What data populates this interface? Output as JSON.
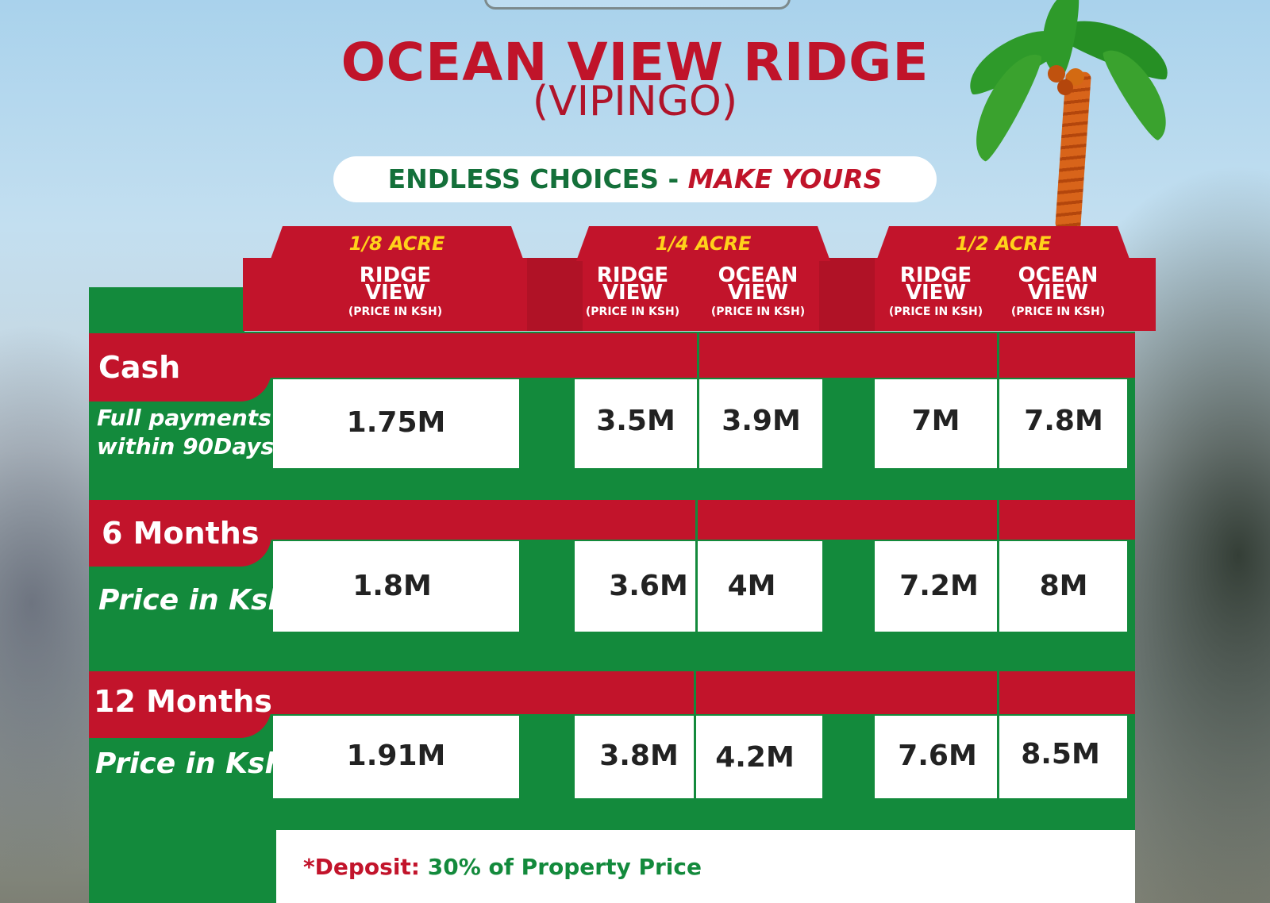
{
  "title": "OCEAN VIEW RIDGE",
  "subtitle": "(VIPINGO)",
  "tagline": {
    "part1": "ENDLESS CHOICES - ",
    "part2": "MAKE YOURS"
  },
  "groups": [
    "1/8 ACRE",
    "1/4 ACRE",
    "1/2 ACRE"
  ],
  "columns": [
    {
      "line1": "RIDGE",
      "line2": "VIEW",
      "note": "(PRICE IN KSH)"
    },
    {
      "line1": "RIDGE",
      "line2": "VIEW",
      "note": "(PRICE IN KSH)"
    },
    {
      "line1": "OCEAN",
      "line2": "VIEW",
      "note": "(PRICE IN KSH)"
    },
    {
      "line1": "RIDGE",
      "line2": "VIEW",
      "note": "(PRICE IN KSH)"
    },
    {
      "line1": "OCEAN",
      "line2": "VIEW",
      "note": "(PRICE IN KSH)"
    }
  ],
  "rows": [
    {
      "label": "Cash",
      "sub1": "Full payments",
      "sub2": "within 90Days",
      "values": [
        "1.75M",
        "3.5M",
        "3.9M",
        "7M",
        "7.8M"
      ]
    },
    {
      "label": "6 Months",
      "sub1": "Price in Ksh",
      "sub2": "",
      "values": [
        "1.8M",
        "3.6M",
        "4M",
        "7.2M",
        "8M"
      ]
    },
    {
      "label": "12 Months",
      "sub1": "Price in Ksh",
      "sub2": "",
      "values": [
        "1.91M",
        "3.8M",
        "4.2M",
        "7.6M",
        "8.5M"
      ]
    }
  ],
  "deposit": {
    "label": "*Deposit:",
    "text": " 30% of Property Price"
  },
  "colors": {
    "red": "#c2142b",
    "green": "#138a3c",
    "yellow": "#ffd21a"
  }
}
